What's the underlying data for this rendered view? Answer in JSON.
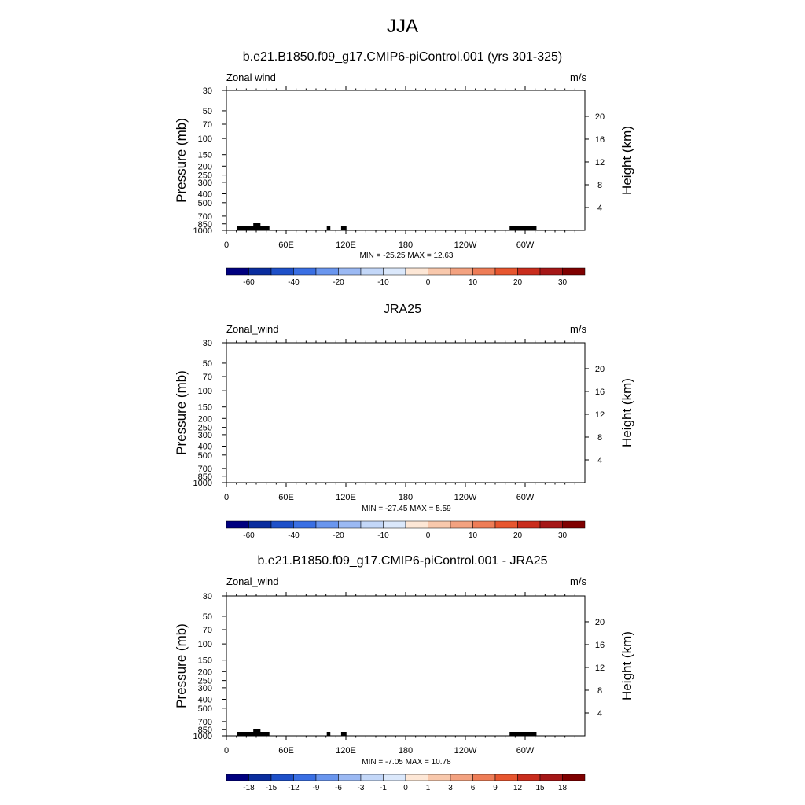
{
  "title": "JJA",
  "chart_data": [
    {
      "type": "heatmap",
      "title": "b.e21.B1850.f09_g17.CMIP6-piControl.001 (yrs 301-325)",
      "left_string": "Zonal wind",
      "units": "m/s",
      "ylabel": "Pressure (mb)",
      "ylabel_right": "Height (km)",
      "x_ticks": [
        "0",
        "60E",
        "120E",
        "180",
        "120W",
        "60W"
      ],
      "y_ticks": [
        "30",
        "50",
        "70",
        "100",
        "150",
        "200",
        "250",
        "300",
        "400",
        "500",
        "700",
        "850",
        "1000"
      ],
      "y_right_ticks": [
        "4",
        "8",
        "12",
        "16",
        "20"
      ],
      "minmax": "MIN = -25.25  MAX =  12.63",
      "colorbar_labels": [
        "-60",
        "-40",
        "-20",
        "-10",
        "0",
        "10",
        "20",
        "30"
      ],
      "colorbar_levels": [
        -70,
        -60,
        -50,
        -40,
        -30,
        -20,
        -15,
        -10,
        -5,
        0,
        5,
        10,
        15,
        20,
        25,
        30,
        35
      ],
      "min": -25.25,
      "max": 12.63,
      "grid": false
    },
    {
      "type": "heatmap",
      "title": "JRA25",
      "left_string": "Zonal_wind",
      "units": "m/s",
      "ylabel": "Pressure (mb)",
      "ylabel_right": "Height (km)",
      "x_ticks": [
        "0",
        "60E",
        "120E",
        "180",
        "120W",
        "60W"
      ],
      "y_ticks": [
        "30",
        "50",
        "70",
        "100",
        "150",
        "200",
        "250",
        "300",
        "400",
        "500",
        "700",
        "850",
        "1000"
      ],
      "y_right_ticks": [
        "4",
        "8",
        "12",
        "16",
        "20"
      ],
      "minmax": "MIN = -27.45  MAX =   5.59",
      "colorbar_labels": [
        "-60",
        "-40",
        "-20",
        "-10",
        "0",
        "10",
        "20",
        "30"
      ],
      "colorbar_levels": [
        -70,
        -60,
        -50,
        -40,
        -30,
        -20,
        -15,
        -10,
        -5,
        0,
        5,
        10,
        15,
        20,
        25,
        30,
        35
      ],
      "min": -27.45,
      "max": 5.59,
      "grid": false
    },
    {
      "type": "heatmap",
      "title": "b.e21.B1850.f09_g17.CMIP6-piControl.001 - JRA25",
      "left_string": "Zonal_wind",
      "units": "m/s",
      "ylabel": "Pressure (mb)",
      "ylabel_right": "Height (km)",
      "x_ticks": [
        "0",
        "60E",
        "120E",
        "180",
        "120W",
        "60W"
      ],
      "y_ticks": [
        "30",
        "50",
        "70",
        "100",
        "150",
        "200",
        "250",
        "300",
        "400",
        "500",
        "700",
        "850",
        "1000"
      ],
      "y_right_ticks": [
        "4",
        "8",
        "12",
        "16",
        "20"
      ],
      "minmax": "MIN =  -7.05  MAX =  10.78",
      "colorbar_labels": [
        "-18",
        "-15",
        "-12",
        "-9",
        "-6",
        "-3",
        "-1",
        "0",
        "1",
        "3",
        "6",
        "9",
        "12",
        "15",
        "18"
      ],
      "colorbar_levels": [
        -21,
        -18,
        -15,
        -12,
        -9,
        -6,
        -3,
        -1,
        0,
        1,
        3,
        6,
        9,
        12,
        15,
        18,
        21
      ],
      "min": -7.05,
      "max": 10.78,
      "grid": false
    }
  ],
  "palette": [
    "#00007f",
    "#0a2d9e",
    "#1e50c8",
    "#3a6fe3",
    "#6a96ee",
    "#9bb9f3",
    "#c3d7f8",
    "#dbe8fb",
    "#fde7d6",
    "#f8c8ac",
    "#f3a280",
    "#ee7d57",
    "#e7562f",
    "#c92d1d",
    "#a51717",
    "#7f0000"
  ]
}
